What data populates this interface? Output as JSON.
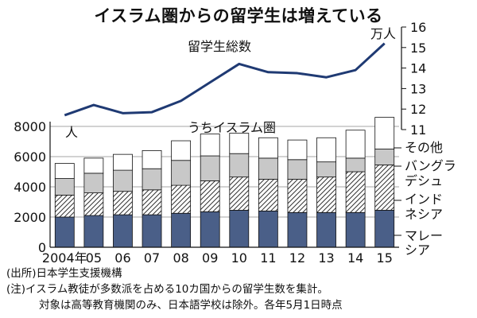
{
  "title": "イスラム圏からの留学生は増えている",
  "chart_data": [
    {
      "type": "line",
      "title": "留学生総数",
      "unit": "万人",
      "x": [
        "2004年",
        "05",
        "06",
        "07",
        "08",
        "09",
        "10",
        "11",
        "12",
        "13",
        "14",
        "15"
      ],
      "series": [
        {
          "name": "留学生総数",
          "values": [
            11.7,
            12.2,
            11.8,
            11.85,
            12.4,
            13.3,
            14.2,
            13.8,
            13.75,
            13.55,
            13.9,
            15.2
          ]
        }
      ],
      "y_ticks": [
        "11",
        "12",
        "13",
        "14",
        "15",
        "16"
      ],
      "ylim": [
        11,
        16
      ],
      "y_axis_side": "right",
      "colors": {
        "line": "#1f3a73"
      }
    },
    {
      "type": "bar",
      "stacked": true,
      "title": "うちイスラム圏",
      "unit": "人",
      "categories": [
        "2004年",
        "05",
        "06",
        "07",
        "08",
        "09",
        "10",
        "11",
        "12",
        "13",
        "14",
        "15"
      ],
      "series": [
        {
          "name": "マレーシア",
          "label": [
            "マレー",
            "シア"
          ],
          "fill": "solid",
          "color": "#4a5f88",
          "values": [
            2000,
            2100,
            2150,
            2150,
            2250,
            2350,
            2450,
            2400,
            2300,
            2300,
            2300,
            2450
          ]
        },
        {
          "name": "インドネシア",
          "label": [
            "インド",
            "ネシア"
          ],
          "fill": "hatch",
          "color": "#ffffff",
          "values": [
            1450,
            1500,
            1550,
            1650,
            1850,
            2050,
            2200,
            2100,
            2200,
            2350,
            2700,
            3000
          ]
        },
        {
          "name": "バングラデシュ",
          "label": [
            "バングラ",
            "デシュ"
          ],
          "fill": "solid",
          "color": "#c8c8c8",
          "values": [
            1100,
            1300,
            1400,
            1400,
            1650,
            1650,
            1550,
            1400,
            1300,
            1000,
            900,
            1050
          ]
        },
        {
          "name": "その他",
          "label": [
            "その他"
          ],
          "fill": "solid",
          "color": "#ffffff",
          "values": [
            1000,
            1000,
            1050,
            1200,
            1300,
            1450,
            1350,
            1350,
            1300,
            1600,
            1850,
            2100
          ]
        }
      ],
      "y_ticks": [
        "0",
        "2000",
        "4000",
        "6000",
        "8000"
      ],
      "ylim": [
        0,
        8000
      ],
      "y_axis_side": "left"
    }
  ],
  "notes": [
    "(出所)日本学生支援機構",
    "(注)イスラム教徒が多数派を占める10カ国からの留学生数を集計。",
    "対象は高等教育機関のみ、日本語学校は除外。各年5月1日時点"
  ]
}
